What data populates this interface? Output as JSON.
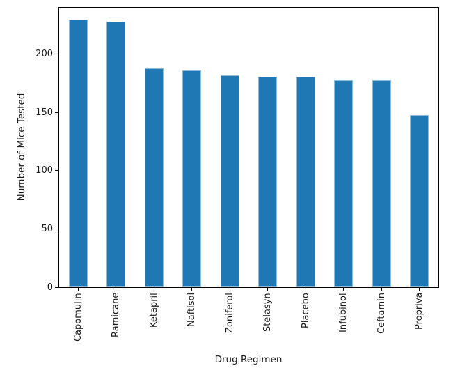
{
  "figure": {
    "background": "#ffffff"
  },
  "chart_data": {
    "type": "bar",
    "title": "",
    "xlabel": "Drug Regimen",
    "ylabel": "Number of Mice Tested",
    "categories": [
      "Capomulin",
      "Ramicane",
      "Ketapril",
      "Naftisol",
      "Zoniferol",
      "Stelasyn",
      "Placebo",
      "Infubinol",
      "Ceftamin",
      "Propriva"
    ],
    "values": [
      230,
      228,
      188,
      186,
      182,
      181,
      181,
      178,
      178,
      148
    ],
    "ylim": [
      0,
      240
    ],
    "yticks": [
      0,
      50,
      100,
      150,
      200
    ],
    "xtick_rotation": 90,
    "grid": false,
    "legend": null,
    "bar_color": "#1f77b4",
    "bar_edge_color": "#8fbbd9",
    "axis_color": "#000000"
  }
}
